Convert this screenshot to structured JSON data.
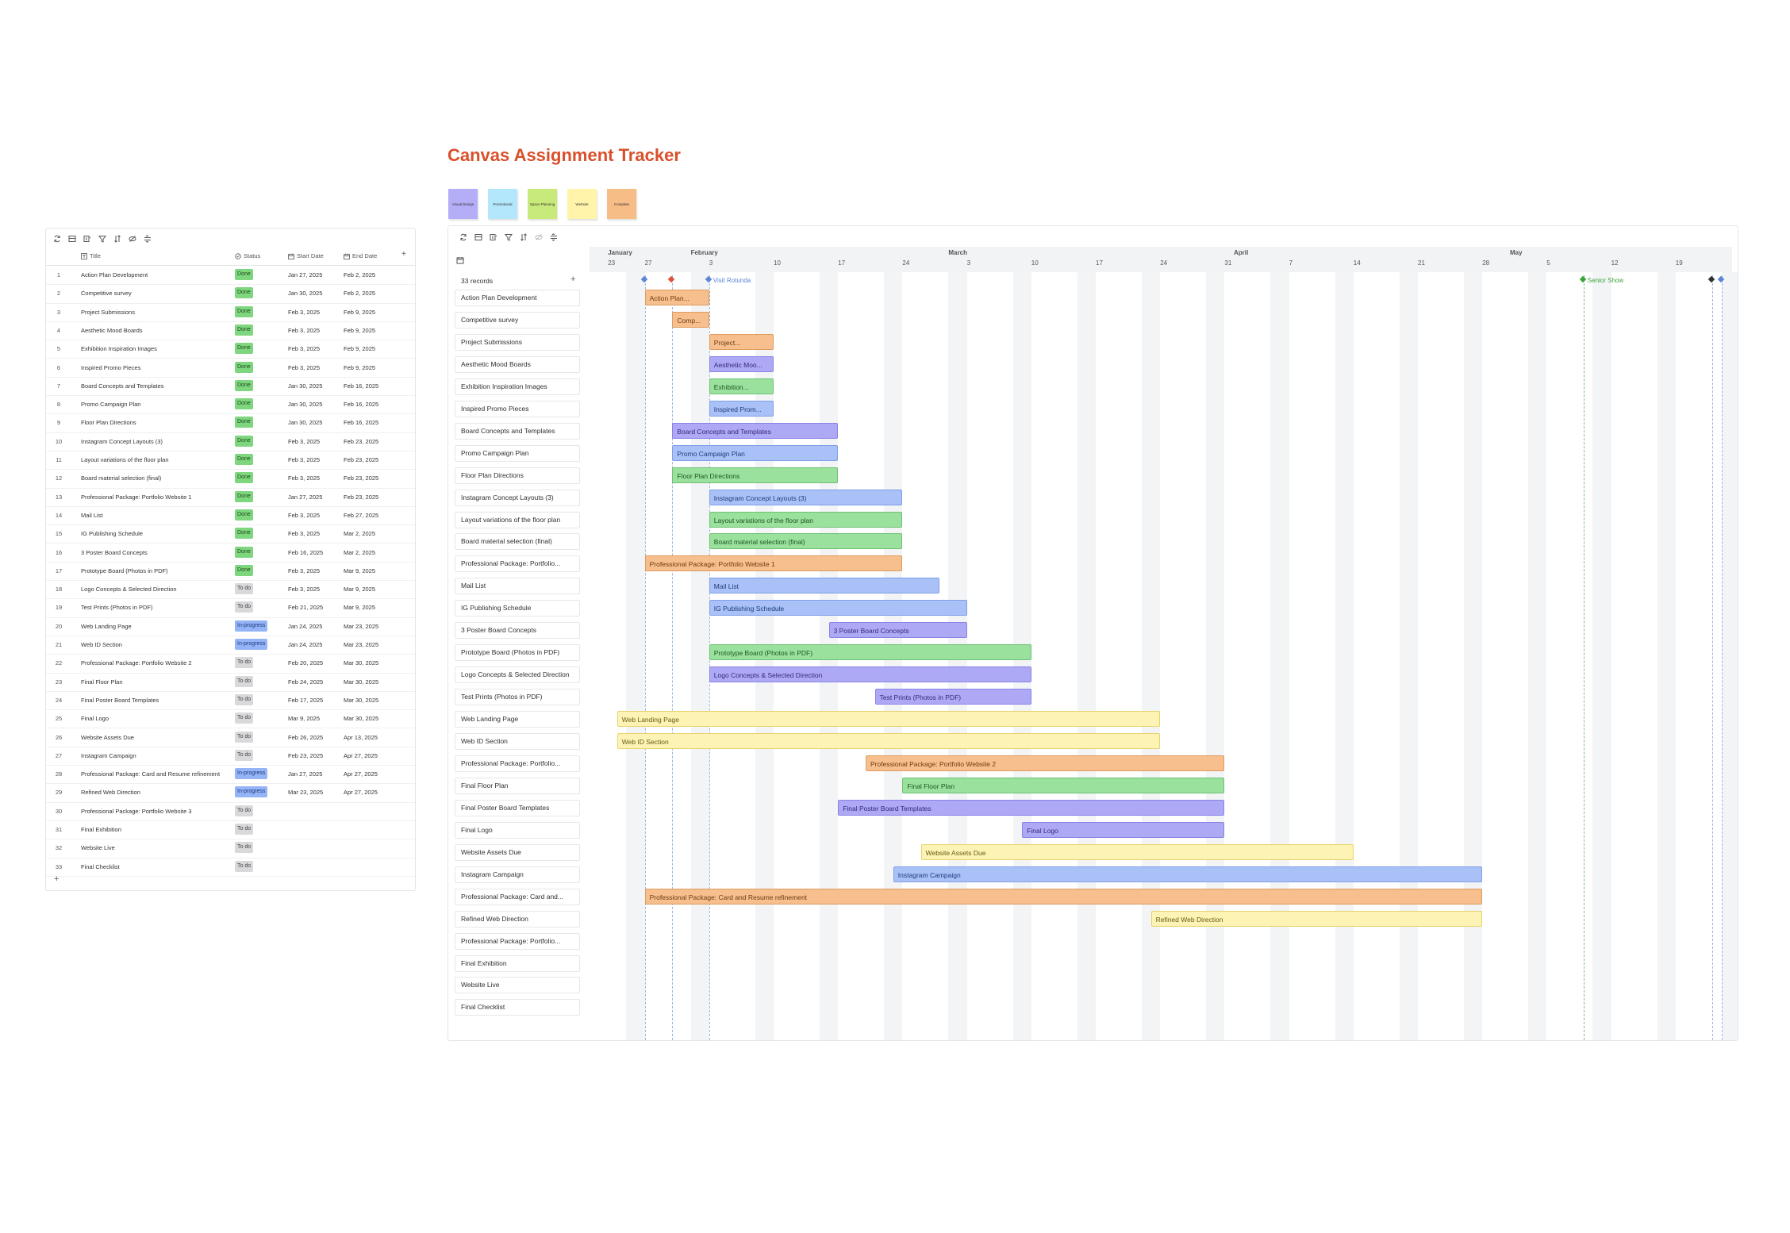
{
  "title": "Canvas Assignment Tracker",
  "legend": [
    {
      "label": "Visual Design",
      "color": "#b4aef7"
    },
    {
      "label": "Promotional",
      "color": "#b3e7fb"
    },
    {
      "label": "Space Planning",
      "color": "#c8ea7a"
    },
    {
      "label": "Website",
      "color": "#fff4aa"
    },
    {
      "label": "Complete",
      "color": "#f6bd86"
    }
  ],
  "table": {
    "columns": {
      "title": "Title",
      "status": "Status",
      "start": "Start Date",
      "end": "End Date"
    },
    "add_row_label": "+",
    "add_col_label": "+",
    "rows": [
      {
        "n": "1",
        "title": "Action Plan Development",
        "status": "Done",
        "start": "Jan 27, 2025",
        "end": "Feb 2, 2025"
      },
      {
        "n": "2",
        "title": "Competitive survey",
        "status": "Done",
        "start": "Jan 30, 2025",
        "end": "Feb 2, 2025"
      },
      {
        "n": "3",
        "title": "Project Submissions",
        "status": "Done",
        "start": "Feb 3, 2025",
        "end": "Feb 9, 2025"
      },
      {
        "n": "4",
        "title": "Aesthetic Mood Boards",
        "status": "Done",
        "start": "Feb 3, 2025",
        "end": "Feb 9, 2025"
      },
      {
        "n": "5",
        "title": "Exhibition Inspiration Images",
        "status": "Done",
        "start": "Feb 3, 2025",
        "end": "Feb 9, 2025"
      },
      {
        "n": "6",
        "title": "Inspired Promo Pieces",
        "status": "Done",
        "start": "Feb 3, 2025",
        "end": "Feb 9, 2025"
      },
      {
        "n": "7",
        "title": "Board Concepts and Templates",
        "status": "Done",
        "start": "Jan 30, 2025",
        "end": "Feb 16, 2025"
      },
      {
        "n": "8",
        "title": "Promo Campaign Plan",
        "status": "Done",
        "start": "Jan 30, 2025",
        "end": "Feb 16, 2025"
      },
      {
        "n": "9",
        "title": "Floor Plan Directions",
        "status": "Done",
        "start": "Jan 30, 2025",
        "end": "Feb 16, 2025"
      },
      {
        "n": "10",
        "title": "Instagram Concept Layouts (3)",
        "status": "Done",
        "start": "Feb 3, 2025",
        "end": "Feb 23, 2025"
      },
      {
        "n": "11",
        "title": "Layout variations of the floor plan",
        "status": "Done",
        "start": "Feb 3, 2025",
        "end": "Feb 23, 2025"
      },
      {
        "n": "12",
        "title": "Board material selection (final)",
        "status": "Done",
        "start": "Feb 3, 2025",
        "end": "Feb 23, 2025"
      },
      {
        "n": "13",
        "title": "Professional Package: Portfolio Website 1",
        "status": "Done",
        "start": "Jan 27, 2025",
        "end": "Feb 23, 2025"
      },
      {
        "n": "14",
        "title": "Mail List",
        "status": "Done",
        "start": "Feb 3, 2025",
        "end": "Feb 27, 2025"
      },
      {
        "n": "15",
        "title": "IG Publishing Schedule",
        "status": "Done",
        "start": "Feb 3, 2025",
        "end": "Mar 2, 2025"
      },
      {
        "n": "16",
        "title": "3 Poster Board Concepts",
        "status": "Done",
        "start": "Feb 16, 2025",
        "end": "Mar 2, 2025"
      },
      {
        "n": "17",
        "title": "Prototype Board (Photos in PDF)",
        "status": "Done",
        "start": "Feb 3, 2025",
        "end": "Mar 9, 2025"
      },
      {
        "n": "18",
        "title": "Logo Concepts & Selected Direction",
        "status": "To do",
        "start": "Feb 3, 2025",
        "end": "Mar 9, 2025"
      },
      {
        "n": "19",
        "title": "Test Prints (Photos in PDF)",
        "status": "To do",
        "start": "Feb 21, 2025",
        "end": "Mar 9, 2025"
      },
      {
        "n": "20",
        "title": "Web Landing Page",
        "status": "In-progress",
        "start": "Jan 24, 2025",
        "end": "Mar 23, 2025"
      },
      {
        "n": "21",
        "title": "Web ID Section",
        "status": "In-progress",
        "start": "Jan 24, 2025",
        "end": "Mar 23, 2025"
      },
      {
        "n": "22",
        "title": "Professional Package: Portfolio Website 2",
        "status": "To do",
        "start": "Feb 20, 2025",
        "end": "Mar 30, 2025"
      },
      {
        "n": "23",
        "title": "Final Floor Plan",
        "status": "To do",
        "start": "Feb 24, 2025",
        "end": "Mar 30, 2025"
      },
      {
        "n": "24",
        "title": "Final Poster Board Templates",
        "status": "To do",
        "start": "Feb 17, 2025",
        "end": "Mar 30, 2025"
      },
      {
        "n": "25",
        "title": "Final Logo",
        "status": "To do",
        "start": "Mar 9, 2025",
        "end": "Mar 30, 2025"
      },
      {
        "n": "26",
        "title": "Website Assets Due",
        "status": "To do",
        "start": "Feb 26, 2025",
        "end": "Apr 13, 2025"
      },
      {
        "n": "27",
        "title": "Instagram Campaign",
        "status": "To do",
        "start": "Feb 23, 2025",
        "end": "Apr 27, 2025"
      },
      {
        "n": "28",
        "title": "Professional Package: Card and Resume refinement",
        "status": "In-progress",
        "start": "Jan 27, 2025",
        "end": "Apr 27, 2025"
      },
      {
        "n": "29",
        "title": "Refined Web Direction",
        "status": "In-progress",
        "start": "Mar 23, 2025",
        "end": "Apr 27, 2025"
      },
      {
        "n": "30",
        "title": "Professional Package: Portfolio Website 3",
        "status": "To do",
        "start": "",
        "end": ""
      },
      {
        "n": "31",
        "title": "Final Exhibition",
        "status": "To do",
        "start": "",
        "end": ""
      },
      {
        "n": "32",
        "title": "Website Live",
        "status": "To do",
        "start": "",
        "end": ""
      },
      {
        "n": "33",
        "title": "Final Checklist",
        "status": "To do",
        "start": "",
        "end": ""
      }
    ]
  },
  "gantt": {
    "records_label": "33 records",
    "add_label": "+",
    "months": [
      {
        "label": "January",
        "date": "2025-01-23"
      },
      {
        "label": "February",
        "date": "2025-02-01"
      },
      {
        "label": "March",
        "date": "2025-03-01"
      },
      {
        "label": "April",
        "date": "2025-04-01"
      },
      {
        "label": "May",
        "date": "2025-05-01"
      }
    ],
    "days": [
      {
        "label": "23",
        "date": "2025-01-23"
      },
      {
        "label": "27",
        "date": "2025-01-27"
      },
      {
        "label": "3",
        "date": "2025-02-03"
      },
      {
        "label": "10",
        "date": "2025-02-10"
      },
      {
        "label": "17",
        "date": "2025-02-17"
      },
      {
        "label": "24",
        "date": "2025-02-24"
      },
      {
        "label": "3",
        "date": "2025-03-03"
      },
      {
        "label": "10",
        "date": "2025-03-10"
      },
      {
        "label": "17",
        "date": "2025-03-17"
      },
      {
        "label": "24",
        "date": "2025-03-24"
      },
      {
        "label": "31",
        "date": "2025-03-31"
      },
      {
        "label": "7",
        "date": "2025-04-07"
      },
      {
        "label": "14",
        "date": "2025-04-14"
      },
      {
        "label": "21",
        "date": "2025-04-21"
      },
      {
        "label": "28",
        "date": "2025-04-28"
      },
      {
        "label": "5",
        "date": "2025-05-05"
      },
      {
        "label": "12",
        "date": "2025-05-12"
      },
      {
        "label": "19",
        "date": "2025-05-19"
      }
    ],
    "milestones": [
      {
        "label": "",
        "date": "2025-01-27",
        "color": "#5b86d6"
      },
      {
        "label": "",
        "date": "2025-01-30",
        "color": "#e0513a"
      },
      {
        "label": "Visit Rotunda",
        "date": "2025-02-03",
        "color": "#5b86d6"
      },
      {
        "label": "Senior Show",
        "date": "2025-05-09",
        "color": "#3aa43a"
      },
      {
        "label": "",
        "date": "2025-05-23",
        "color": "#2f3033"
      },
      {
        "label": "",
        "date": "2025-05-24",
        "color": "#5b86d6"
      }
    ],
    "tasks": [
      {
        "label": "Action Plan Development",
        "bar_text": "Action Plan...",
        "start": "2025-01-27",
        "end": "2025-02-02",
        "color": "orange"
      },
      {
        "label": "Competitive survey",
        "bar_text": "Comp...",
        "start": "2025-01-30",
        "end": "2025-02-02",
        "color": "orange"
      },
      {
        "label": "Project Submissions",
        "bar_text": "Project...",
        "start": "2025-02-03",
        "end": "2025-02-09",
        "color": "orange"
      },
      {
        "label": "Aesthetic Mood Boards",
        "bar_text": "Aesthetic Moo...",
        "start": "2025-02-03",
        "end": "2025-02-09",
        "color": "purple"
      },
      {
        "label": "Exhibition Inspiration Images",
        "bar_text": "Exhibition...",
        "start": "2025-02-03",
        "end": "2025-02-09",
        "color": "green"
      },
      {
        "label": "Inspired Promo Pieces",
        "bar_text": "Inspired Prom...",
        "start": "2025-02-03",
        "end": "2025-02-09",
        "color": "blue"
      },
      {
        "label": "Board Concepts and Templates",
        "bar_text": "Board Concepts and Templates",
        "start": "2025-01-30",
        "end": "2025-02-16",
        "color": "purple"
      },
      {
        "label": "Promo Campaign Plan",
        "bar_text": "Promo Campaign Plan",
        "start": "2025-01-30",
        "end": "2025-02-16",
        "color": "blue"
      },
      {
        "label": "Floor Plan Directions",
        "bar_text": "Floor Plan Directions",
        "start": "2025-01-30",
        "end": "2025-02-16",
        "color": "green"
      },
      {
        "label": "Instagram Concept Layouts (3)",
        "bar_text": "Instagram Concept Layouts (3)",
        "start": "2025-02-03",
        "end": "2025-02-23",
        "color": "blue"
      },
      {
        "label": "Layout variations of the floor plan",
        "bar_text": "Layout variations of the floor plan",
        "start": "2025-02-03",
        "end": "2025-02-23",
        "color": "green"
      },
      {
        "label": "Board material selection (final)",
        "bar_text": "Board material selection (final)",
        "start": "2025-02-03",
        "end": "2025-02-23",
        "color": "green"
      },
      {
        "label": "Professional Package: Portfolio...",
        "bar_text": "Professional Package: Portfolio Website 1",
        "start": "2025-01-27",
        "end": "2025-02-23",
        "color": "orange"
      },
      {
        "label": "Mail List",
        "bar_text": "Mail List",
        "start": "2025-02-03",
        "end": "2025-02-27",
        "color": "blue"
      },
      {
        "label": "IG Publishing Schedule",
        "bar_text": "IG Publishing Schedule",
        "start": "2025-02-03",
        "end": "2025-03-02",
        "color": "blue"
      },
      {
        "label": "3 Poster Board Concepts",
        "bar_text": "3 Poster Board Concepts",
        "start": "2025-02-16",
        "end": "2025-03-02",
        "color": "purple"
      },
      {
        "label": "Prototype Board (Photos in PDF)",
        "bar_text": "Prototype Board (Photos in PDF)",
        "start": "2025-02-03",
        "end": "2025-03-09",
        "color": "green"
      },
      {
        "label": "Logo Concepts & Selected Direction",
        "bar_text": "Logo Concepts & Selected Direction",
        "start": "2025-02-03",
        "end": "2025-03-09",
        "color": "purple"
      },
      {
        "label": "Test Prints (Photos in PDF)",
        "bar_text": "Test Prints (Photos in PDF)",
        "start": "2025-02-21",
        "end": "2025-03-09",
        "color": "purple"
      },
      {
        "label": "Web Landing Page",
        "bar_text": "Web Landing Page",
        "start": "2025-01-24",
        "end": "2025-03-23",
        "color": "yellow"
      },
      {
        "label": "Web ID Section",
        "bar_text": "Web ID Section",
        "start": "2025-01-24",
        "end": "2025-03-23",
        "color": "yellow"
      },
      {
        "label": "Professional Package: Portfolio...",
        "bar_text": "Professional Package: Portfolio Website 2",
        "start": "2025-02-20",
        "end": "2025-03-30",
        "color": "orange"
      },
      {
        "label": "Final Floor Plan",
        "bar_text": "Final Floor Plan",
        "start": "2025-02-24",
        "end": "2025-03-30",
        "color": "green"
      },
      {
        "label": "Final Poster Board Templates",
        "bar_text": "Final Poster Board Templates",
        "start": "2025-02-17",
        "end": "2025-03-30",
        "color": "purple"
      },
      {
        "label": "Final Logo",
        "bar_text": "Final Logo",
        "start": "2025-03-09",
        "end": "2025-03-30",
        "color": "purple"
      },
      {
        "label": "Website Assets Due",
        "bar_text": "Website Assets Due",
        "start": "2025-02-26",
        "end": "2025-04-13",
        "color": "yellow"
      },
      {
        "label": "Instagram Campaign",
        "bar_text": "Instagram Campaign",
        "start": "2025-02-23",
        "end": "2025-04-27",
        "color": "blue"
      },
      {
        "label": "Professional Package: Card and...",
        "bar_text": "Professional Package: Card and Resume refinement",
        "start": "2025-01-27",
        "end": "2025-04-27",
        "color": "orange"
      },
      {
        "label": "Refined Web Direction",
        "bar_text": "Refined Web Direction",
        "start": "2025-03-23",
        "end": "2025-04-27",
        "color": "yellow"
      },
      {
        "label": "Professional Package: Portfolio...",
        "bar_text": "",
        "start": "",
        "end": "",
        "color": ""
      },
      {
        "label": "Final Exhibition",
        "bar_text": "",
        "start": "",
        "end": "",
        "color": ""
      },
      {
        "label": "Website Live",
        "bar_text": "",
        "start": "",
        "end": "",
        "color": ""
      },
      {
        "label": "Final Checklist",
        "bar_text": "",
        "start": "",
        "end": "",
        "color": ""
      }
    ]
  },
  "icons": {
    "toolbar": [
      "refresh-icon",
      "layout-icon",
      "fields-icon",
      "filter-icon",
      "sort-icon",
      "hide-icon",
      "row-height-icon"
    ],
    "calendar": "calendar-icon"
  }
}
